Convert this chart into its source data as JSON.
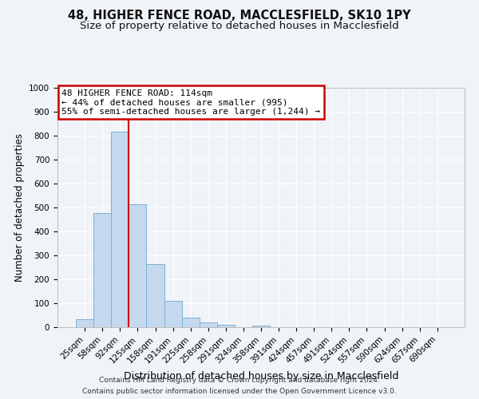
{
  "title1": "48, HIGHER FENCE ROAD, MACCLESFIELD, SK10 1PY",
  "title2": "Size of property relative to detached houses in Macclesfield",
  "xlabel": "Distribution of detached houses by size in Macclesfield",
  "ylabel": "Number of detached properties",
  "bar_labels": [
    "25sqm",
    "58sqm",
    "92sqm",
    "125sqm",
    "158sqm",
    "191sqm",
    "225sqm",
    "258sqm",
    "291sqm",
    "324sqm",
    "358sqm",
    "391sqm",
    "424sqm",
    "457sqm",
    "491sqm",
    "524sqm",
    "557sqm",
    "590sqm",
    "624sqm",
    "657sqm",
    "690sqm"
  ],
  "bar_values": [
    33,
    478,
    818,
    515,
    265,
    110,
    40,
    21,
    10,
    0,
    8,
    0,
    0,
    0,
    0,
    0,
    0,
    0,
    0,
    0,
    0
  ],
  "bar_color": "#c5d9ee",
  "bar_edgecolor": "#7aaed4",
  "vline_color": "#cc0000",
  "vline_pos": 2.5,
  "ylim": [
    0,
    1000
  ],
  "yticks": [
    0,
    100,
    200,
    300,
    400,
    500,
    600,
    700,
    800,
    900,
    1000
  ],
  "annotation_line1": "48 HIGHER FENCE ROAD: 114sqm",
  "annotation_line2": "← 44% of detached houses are smaller (995)",
  "annotation_line3": "55% of semi-detached houses are larger (1,244) →",
  "annotation_box_edgecolor": "#cc0000",
  "footer1": "Contains HM Land Registry data © Crown copyright and database right 2024.",
  "footer2": "Contains public sector information licensed under the Open Government Licence v3.0.",
  "bg_color": "#f0f4f8",
  "grid_color": "#ffffff",
  "title1_fontsize": 10.5,
  "title2_fontsize": 9.5,
  "xlabel_fontsize": 9,
  "ylabel_fontsize": 8.5,
  "tick_fontsize": 7.5,
  "ann_fontsize": 8,
  "footer_fontsize": 6.5
}
